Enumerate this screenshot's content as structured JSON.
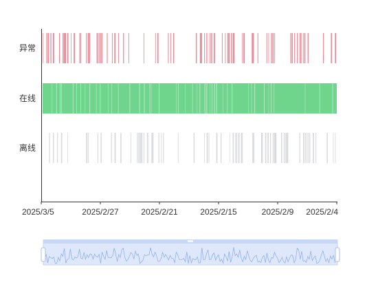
{
  "chart_data": {
    "type": "timeline-status",
    "categories": [
      "异常",
      "在线",
      "离线"
    ],
    "x_ticks": [
      "2025/3/5",
      "2025/2/27",
      "2025/2/21",
      "2025/2/15",
      "2025/2/9",
      "2025/2/4"
    ],
    "x_range": [
      "2025/3/5",
      "2025/2/4"
    ],
    "colors": {
      "异常": "#e98a98",
      "在线": "#6fd48c",
      "离线": "#d6d8db",
      "axis": "#333333",
      "slider_fill": "#dfe8fb",
      "slider_border": "#c5d4f5",
      "slider_line": "#8fb0ef"
    },
    "legend": "none",
    "grid": false,
    "data_zoom": {
      "start_percent": 0,
      "end_percent": 100
    }
  }
}
